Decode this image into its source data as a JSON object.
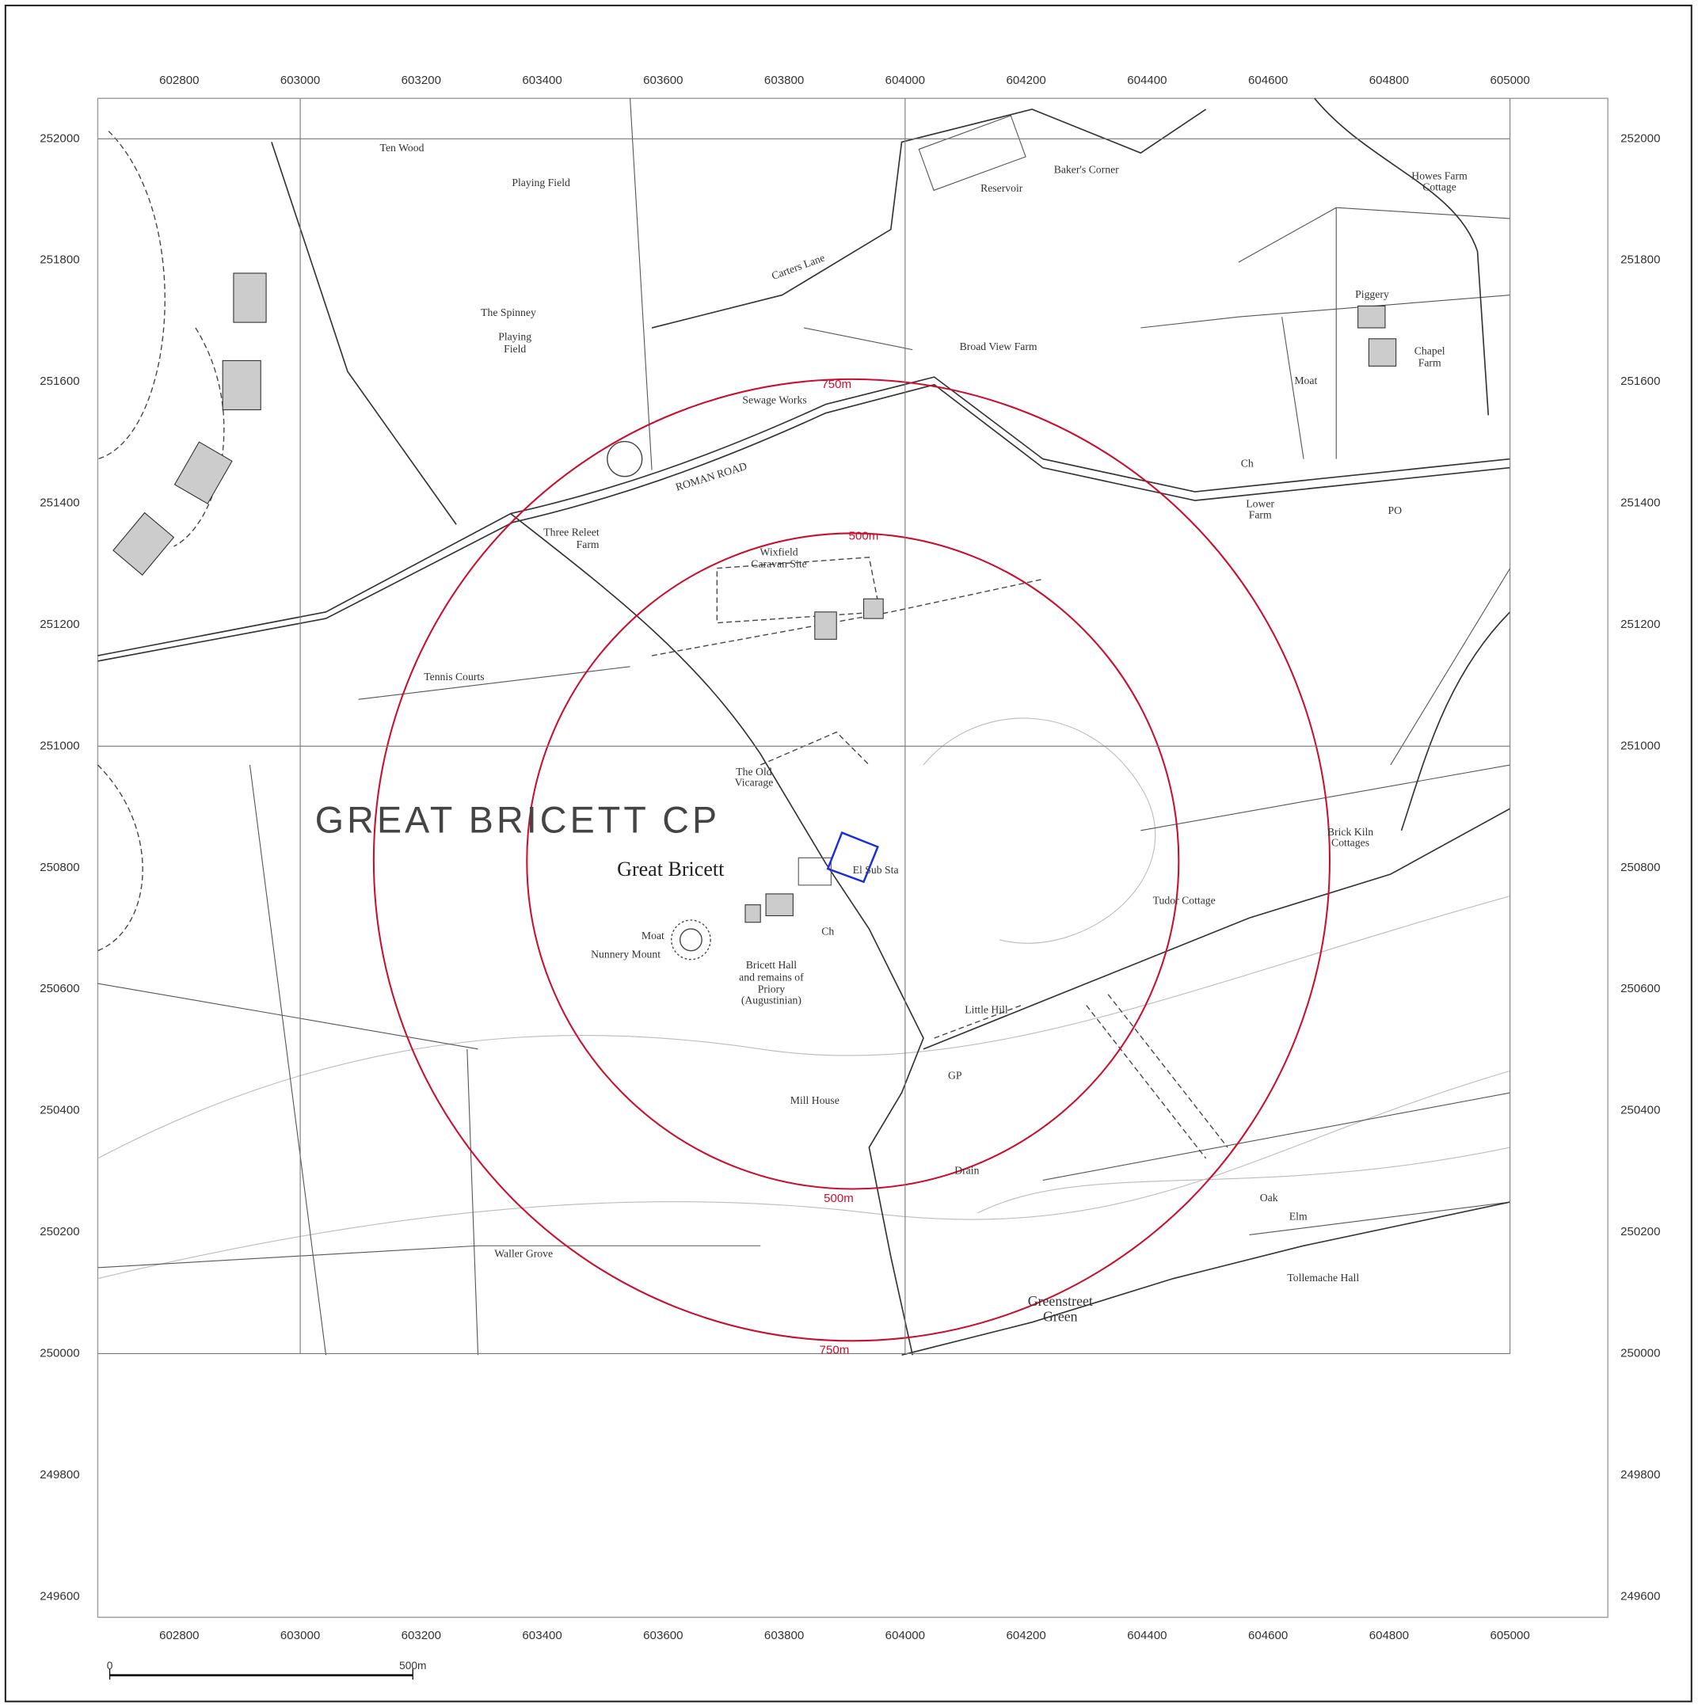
{
  "map": {
    "eastings": [
      602800,
      603000,
      603200,
      603400,
      603600,
      603800,
      604000,
      604200,
      604400,
      604600,
      604800,
      605000
    ],
    "northings": [
      252000,
      251800,
      251600,
      251400,
      251200,
      251000,
      250800,
      250600,
      250400,
      250200,
      250000,
      249800,
      249600
    ],
    "buffer_labels": [
      "750m",
      "500m",
      "500m",
      "750m"
    ],
    "parish": "GREAT BRICETT CP",
    "village": "Great Bricett",
    "places": [
      "Ten Wood",
      "Playing Field",
      "Baker's Corner",
      "Reservoir",
      "Howes Farm",
      "Cottage",
      "Carters Lane",
      "The Spinney",
      "Playing",
      "Field",
      "Broad View Farm",
      "Piggery",
      "Chapel",
      "Farm",
      "Moat",
      "Sewage Works",
      "ROMAN ROAD",
      "Ch",
      "Lower",
      "Farm",
      "PO",
      "Three Releet",
      "Farm",
      "Wixfield",
      "Caravan Site",
      "Tennis Courts",
      "The Old",
      "Vicarage",
      "Brick Kiln",
      "Cottages",
      "El Sub Sta",
      "Tudor Cottage",
      "Moat",
      "Nunnery Mount",
      "Ch",
      "Bricett Hall",
      "and remains of",
      "Priory",
      "(Augustinian)",
      "Little Hill",
      "GP",
      "Mill House",
      "Drain",
      "Oak",
      "Elm",
      "Waller Grove",
      "Tollemache Hall",
      "Greenstreet",
      "Green"
    ],
    "scale_bar": {
      "start": "0",
      "end": "500m"
    }
  }
}
